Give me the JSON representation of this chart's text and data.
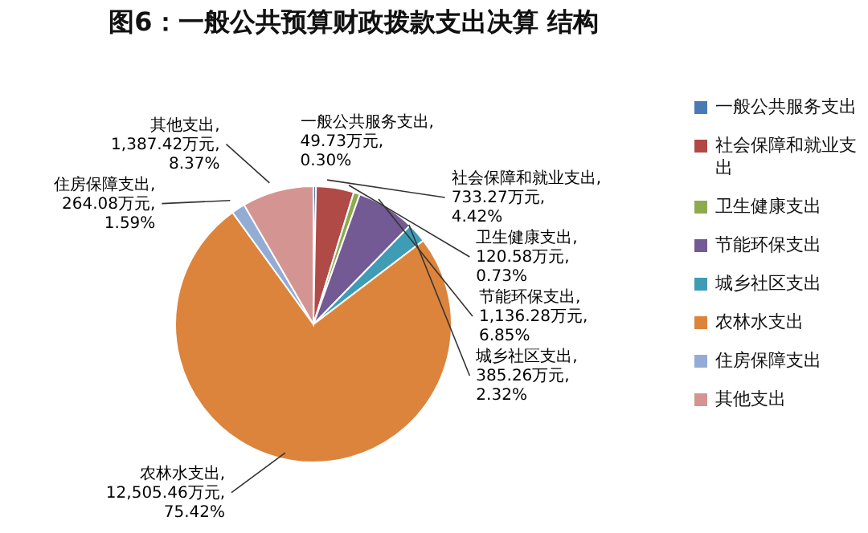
{
  "chart_data": {
    "type": "pie",
    "title": "图6：一般公共预算财政拨款支出决算 结构",
    "categories": [
      "一般公共服务支出",
      "社会保障和就业支出",
      "卫生健康支出",
      "节能环保支出",
      "城乡社区支出",
      "农林水支出",
      "住房保障支出",
      "其他支出"
    ],
    "values": [
      49.73,
      733.27,
      120.58,
      1136.28,
      385.26,
      12505.46,
      264.08,
      1387.42
    ],
    "colors": [
      "#4a7ab5",
      "#b04a47",
      "#8cab4e",
      "#735a94",
      "#3e9cb4",
      "#dc843c",
      "#93acd4",
      "#d49492"
    ],
    "value_labels": [
      "一般公共服务支出,\n49.73万元,\n0.30%",
      "社会保障和就业支出,\n733.27万元,\n4.42%",
      "卫生健康支出,\n120.58万元,\n0.73%",
      "节能环保支出,\n1,136.28万元,\n6.85%",
      "城乡社区支出,\n385.26万元,\n2.32%",
      "农林水支出,\n12,505.46万元,\n75.42%",
      "住房保障支出,\n264.08万元,\n1.59%",
      "其他支出,\n1,387.42万元,\n8.37%"
    ],
    "legend": "right"
  }
}
